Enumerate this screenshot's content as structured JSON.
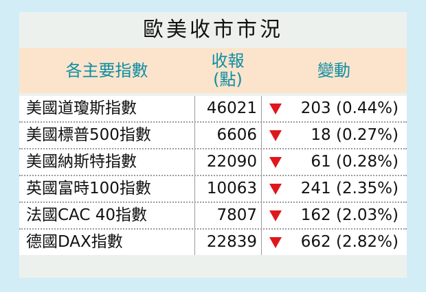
{
  "title": "歐美收市市況",
  "header": {
    "name": "各主要指數",
    "close": [
      "收報",
      "(點)"
    ],
    "change": "變動"
  },
  "table": {
    "rows": [
      [
        "美國道瓊斯指數",
        "46021",
        "203 (0.44%)"
      ],
      [
        "美國標普500指數",
        "6606",
        "18 (0.27%)"
      ],
      [
        "美國納斯特指數",
        "22090",
        "61 (0.28%)"
      ],
      [
        "英國富時100指數",
        "10063",
        "241 (2.35%)"
      ],
      [
        "法國CAC 40指數",
        "7807",
        "162 (2.03%)"
      ],
      [
        "德國DAX指數",
        "22839",
        "662 (2.82%)"
      ]
    ]
  }
}
